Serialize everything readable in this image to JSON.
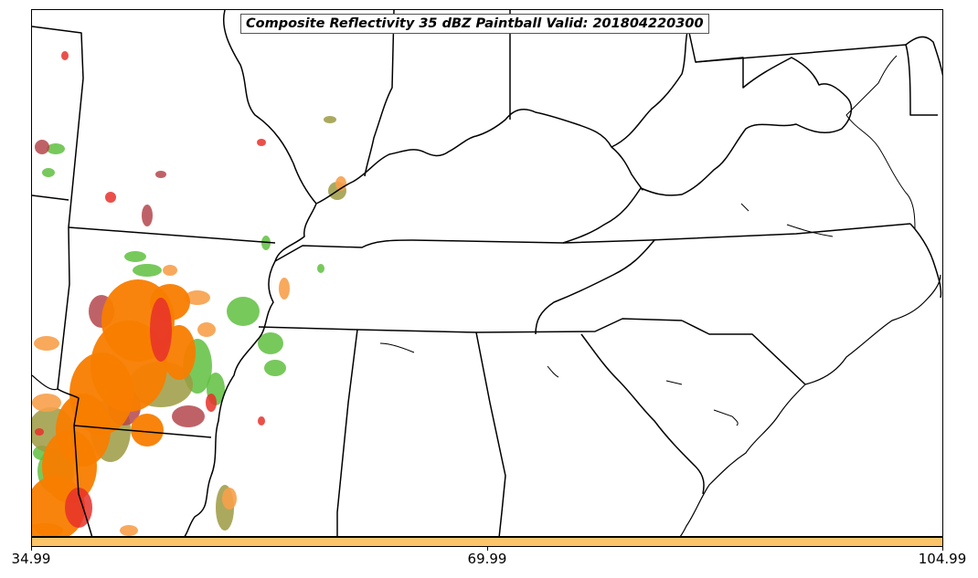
{
  "title": "Composite Reflectivity 35 dBZ Paintball Valid: 201804220300",
  "colorbar": {
    "color": "#fdc46a",
    "ticks": [
      "34.99",
      "69.99",
      "104.99"
    ]
  },
  "palette": {
    "orange": "#f87d00",
    "light_orange": "#f7a04a",
    "red": "#e8302a",
    "dark_red": "#b4474c",
    "green": "#5fbf3f",
    "bright_green": "#4fe04f",
    "olive": "#9c9a42",
    "dark_green": "#4e8a3a",
    "khaki": "#c3b14f"
  }
}
